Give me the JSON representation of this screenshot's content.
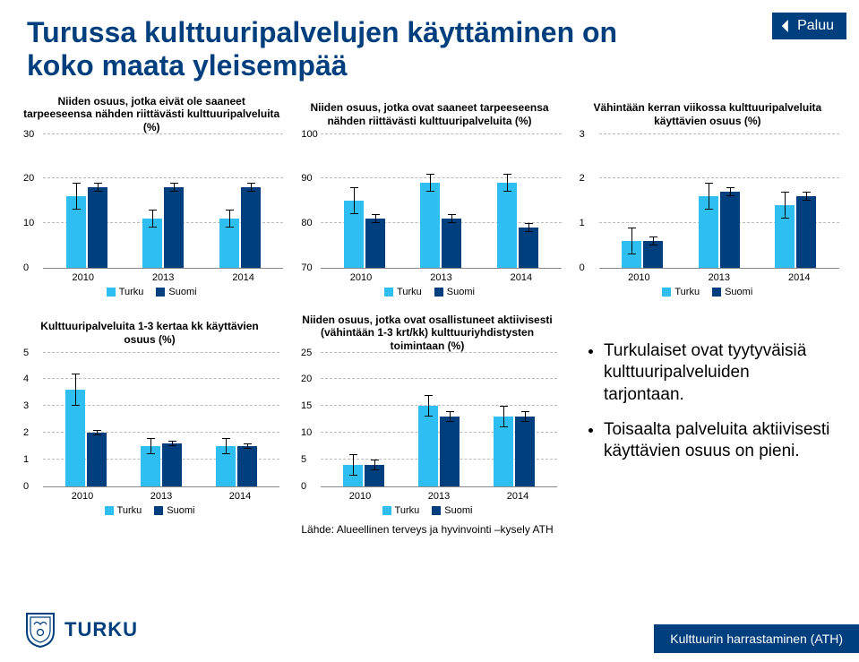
{
  "title": "Turussa kulttuuripalvelujen käyttäminen on koko maata yleisempää",
  "back_label": "Paluu",
  "legend": {
    "turku": "Turku",
    "suomi": "Suomi"
  },
  "colors": {
    "turku": "#2fbef2",
    "suomi": "#003f7d",
    "title": "#003f7d",
    "grid": "#bbbbbb",
    "bg": "#ffffff"
  },
  "years": [
    "2010",
    "2013",
    "2014"
  ],
  "charts": [
    {
      "id": "c1",
      "title": "Niiden osuus, jotka eivät ole saaneet tarpeeseensa nähden riittävästi kulttuuripalveluita (%)",
      "ymin": 0,
      "ymax": 30,
      "ystep": 10,
      "turku": [
        16,
        11,
        11
      ],
      "suomi": [
        18,
        18,
        18
      ],
      "err_turku": [
        3,
        2,
        2
      ],
      "err_suomi": [
        1,
        1,
        1
      ]
    },
    {
      "id": "c2",
      "title": "Niiden osuus, jotka ovat saaneet tarpeeseensa nähden riittävästi kulttuuripalveluita (%)",
      "ymin": 70,
      "ymax": 100,
      "ystep": 10,
      "turku": [
        85,
        89,
        89
      ],
      "suomi": [
        81,
        81,
        79
      ],
      "err_turku": [
        3,
        2,
        2
      ],
      "err_suomi": [
        1,
        1,
        1
      ]
    },
    {
      "id": "c3",
      "title": "Vähintään kerran viikossa kulttuuripalveluita käyttävien osuus (%)",
      "ymin": 0,
      "ymax": 3,
      "ystep": 1,
      "turku": [
        0.6,
        1.6,
        1.4
      ],
      "suomi": [
        0.6,
        1.7,
        1.6
      ],
      "err_turku": [
        0.3,
        0.3,
        0.3
      ],
      "err_suomi": [
        0.1,
        0.1,
        0.1
      ]
    },
    {
      "id": "c4",
      "title": "Kulttuuripalveluita 1-3 kertaa kk käyttävien osuus (%)",
      "ymin": 0,
      "ymax": 5,
      "ystep": 1,
      "turku": [
        3.6,
        1.5,
        1.5
      ],
      "suomi": [
        2.0,
        1.6,
        1.5
      ],
      "err_turku": [
        0.6,
        0.3,
        0.3
      ],
      "err_suomi": [
        0.1,
        0.1,
        0.1
      ]
    },
    {
      "id": "c5",
      "title": "Niiden osuus, jotka ovat osallistuneet aktiivisesti (vähintään 1-3 krt/kk) kulttuuriyhdistysten toimintaan (%)",
      "ymin": 0,
      "ymax": 25,
      "ystep": 5,
      "turku": [
        4,
        15,
        13
      ],
      "suomi": [
        4,
        13,
        13
      ],
      "err_turku": [
        2,
        2,
        2
      ],
      "err_suomi": [
        1,
        1,
        1
      ]
    }
  ],
  "bullets": [
    "Turkulaiset ovat tyytyväisiä kulttuuripalveluiden tarjontaan.",
    "Toisaalta palveluita aktiivisesti käyttävien osuus on pieni."
  ],
  "source": "Lähde: Alueellinen terveys ja hyvinvointi –kysely ATH",
  "footer_band": "Kulttuurin harrastaminen (ATH)",
  "logo_text": "TURKU"
}
